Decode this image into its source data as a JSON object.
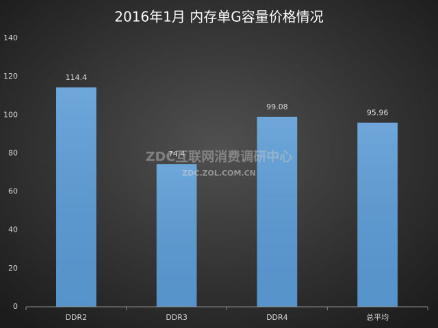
{
  "chart_data": {
    "type": "bar",
    "title": "2016年1月 内存单G容量价格情况",
    "categories": [
      "DDR2",
      "DDR3",
      "DDR4",
      "总平均"
    ],
    "values": [
      114.4,
      74.4,
      99.08,
      95.96
    ],
    "color": "#5b9bd5",
    "ylim": [
      0,
      140
    ],
    "yticks": [
      0,
      20,
      40,
      60,
      80,
      100,
      120,
      140
    ],
    "grid": false,
    "watermark": [
      "ZDC互联网消费调研中心",
      "ZDC.ZOL.COM.CN"
    ]
  }
}
